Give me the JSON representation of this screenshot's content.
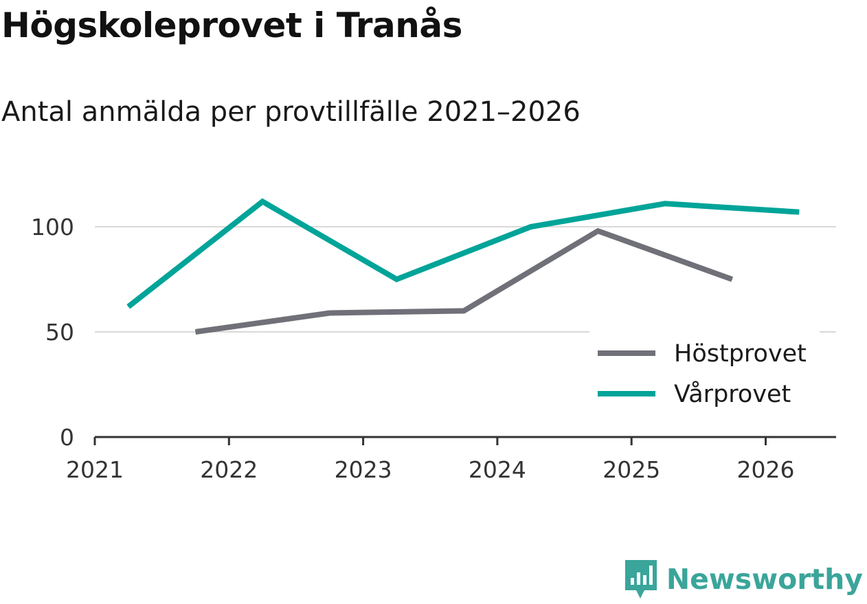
{
  "title": "Högskoleprovet i Tranås",
  "subtitle": "Antal anmälda per provtillfälle 2021–2026",
  "brand": {
    "name": "Newsworthy",
    "icon": "newsworthy-logo-icon",
    "color": "#3aa59a"
  },
  "chart_data": {
    "type": "line",
    "title": "Högskoleprovet i Tranås",
    "subtitle": "Antal anmälda per provtillfälle 2021–2026",
    "xlabel": "",
    "ylabel": "",
    "xlim": [
      2021,
      2026.5
    ],
    "ylim": [
      0,
      120
    ],
    "x_ticks": [
      "2021",
      "2022",
      "2023",
      "2024",
      "2025",
      "2026"
    ],
    "y_ticks": [
      "0",
      "50",
      "100"
    ],
    "grid": true,
    "legend_position": "bottom-right",
    "series": [
      {
        "name": "Höstprovet",
        "color": "#707078",
        "points": [
          {
            "x": 2021.75,
            "y": 50
          },
          {
            "x": 2022.75,
            "y": 59
          },
          {
            "x": 2023.75,
            "y": 60
          },
          {
            "x": 2024.75,
            "y": 98
          },
          {
            "x": 2025.75,
            "y": 75
          }
        ]
      },
      {
        "name": "Vårprovet",
        "color": "#00a499",
        "points": [
          {
            "x": 2021.25,
            "y": 62
          },
          {
            "x": 2022.25,
            "y": 112
          },
          {
            "x": 2023.25,
            "y": 75
          },
          {
            "x": 2024.25,
            "y": 100
          },
          {
            "x": 2025.25,
            "y": 111
          },
          {
            "x": 2026.25,
            "y": 107
          }
        ]
      }
    ]
  }
}
